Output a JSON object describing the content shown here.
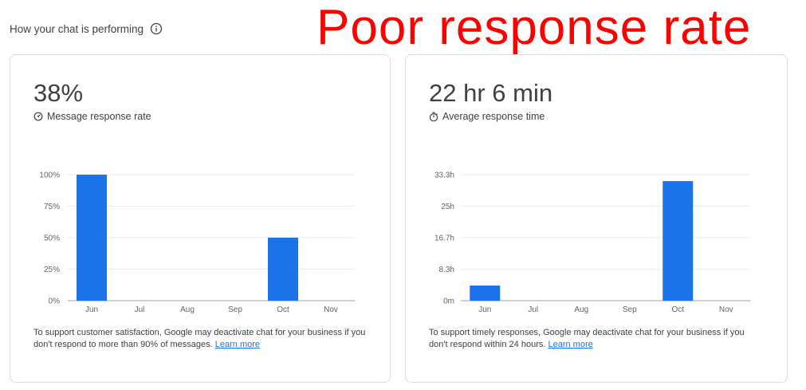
{
  "header": {
    "title": "How your chat is performing",
    "info_icon": "info-icon"
  },
  "overlay_text": "Poor response rate",
  "cards": [
    {
      "value": "38%",
      "metric_label": "Message response rate",
      "metric_icon": "gauge-icon",
      "note_text": "To support customer satisfaction, Google may deactivate chat for your business if you don't respond to more than 90% of messages.",
      "learn_more": "Learn more",
      "chart_data": {
        "type": "bar",
        "categories": [
          "Jun",
          "Jul",
          "Aug",
          "Sep",
          "Oct",
          "Nov"
        ],
        "values": [
          100,
          0,
          0,
          0,
          50,
          0
        ],
        "ylim": [
          0,
          100
        ],
        "yticks": [
          "100%",
          "75%",
          "50%",
          "25%",
          "0%"
        ],
        "ytick_values": [
          100,
          75,
          50,
          25,
          0
        ],
        "grid": true,
        "bar_color": "#1a73e8"
      }
    },
    {
      "value": "22 hr 6 min",
      "metric_label": "Average response time",
      "metric_icon": "stopwatch-icon",
      "note_text": "To support timely responses, Google may deactivate chat for your business if you don't respond within 24 hours.",
      "learn_more": "Learn more",
      "chart_data": {
        "type": "bar",
        "categories": [
          "Jun",
          "Jul",
          "Aug",
          "Sep",
          "Oct",
          "Nov"
        ],
        "values": [
          4.0,
          0,
          0,
          0,
          31.6,
          0
        ],
        "ylim": [
          0,
          33.3
        ],
        "yticks": [
          "33.3h",
          "25h",
          "16.7h",
          "8.3h",
          "0m"
        ],
        "ytick_values": [
          33.3,
          25,
          16.7,
          8.3,
          0
        ],
        "grid": true,
        "bar_color": "#1a73e8"
      }
    }
  ]
}
